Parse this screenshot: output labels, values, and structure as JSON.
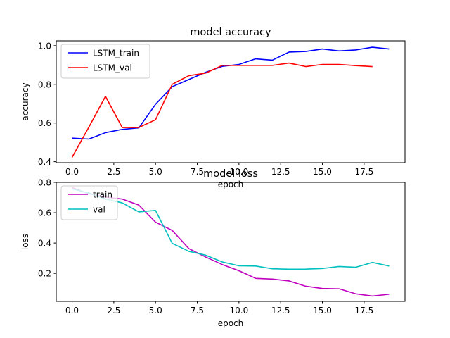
{
  "chart_data": [
    {
      "type": "line",
      "title": "model accuracy",
      "xlabel": "epoch",
      "ylabel": "accuracy",
      "xlim": [
        -0.95,
        19.95
      ],
      "ylim": [
        0.395,
        1.025
      ],
      "xticks": [
        0.0,
        2.5,
        5.0,
        7.5,
        10.0,
        12.5,
        15.0,
        17.5
      ],
      "xtick_labels": [
        "0.0",
        "2.5",
        "5.0",
        "7.5",
        "10.0",
        "12.5",
        "15.0",
        "17.5"
      ],
      "yticks": [
        0.4,
        0.6,
        0.8,
        1.0
      ],
      "ytick_labels": [
        "0.4",
        "0.6",
        "0.8",
        "1.0"
      ],
      "grid": false,
      "legend_position": "upper-left",
      "series": [
        {
          "name": "LSTM_train",
          "color": "#0000ff",
          "x": [
            0,
            1,
            2,
            3,
            4,
            5,
            6,
            7,
            8,
            9,
            10,
            11,
            12,
            13,
            14,
            15,
            16,
            17,
            18,
            19
          ],
          "values": [
            0.522,
            0.517,
            0.55,
            0.567,
            0.575,
            0.697,
            0.788,
            0.825,
            0.862,
            0.893,
            0.903,
            0.932,
            0.925,
            0.967,
            0.97,
            0.983,
            0.973,
            0.978,
            0.992,
            0.983
          ]
        },
        {
          "name": "LSTM_val",
          "color": "#ff0000",
          "x": [
            0,
            1,
            2,
            3,
            4,
            5,
            6,
            7,
            8,
            9,
            10,
            11,
            12,
            13,
            14,
            15,
            16,
            17,
            18
          ],
          "values": [
            0.423,
            0.578,
            0.738,
            0.577,
            0.577,
            0.617,
            0.8,
            0.845,
            0.858,
            0.898,
            0.898,
            0.898,
            0.898,
            0.91,
            0.892,
            0.903,
            0.903,
            0.897,
            0.892
          ]
        }
      ]
    },
    {
      "type": "line",
      "title": "model loss",
      "xlabel": "epoch",
      "ylabel": "loss",
      "xlim": [
        -0.95,
        19.95
      ],
      "ylim": [
        0.015,
        0.8
      ],
      "xticks": [
        0.0,
        2.5,
        5.0,
        7.5,
        10.0,
        12.5,
        15.0,
        17.5
      ],
      "xtick_labels": [
        "0.0",
        "2.5",
        "5.0",
        "7.5",
        "10.0",
        "12.5",
        "15.0",
        "17.5"
      ],
      "yticks": [
        0.2,
        0.4,
        0.6,
        0.8
      ],
      "ytick_labels": [
        "0.2",
        "0.4",
        "0.6",
        "0.8"
      ],
      "grid": false,
      "legend_position": "upper-left",
      "series": [
        {
          "name": "train",
          "color": "#bf00bf",
          "x": [
            0,
            1,
            2,
            3,
            4,
            5,
            6,
            7,
            8,
            9,
            10,
            11,
            12,
            13,
            14,
            15,
            16,
            17,
            18,
            19
          ],
          "values": [
            0.765,
            0.725,
            0.703,
            0.69,
            0.65,
            0.538,
            0.483,
            0.363,
            0.308,
            0.258,
            0.217,
            0.167,
            0.162,
            0.15,
            0.115,
            0.1,
            0.098,
            0.065,
            0.05,
            0.062
          ]
        },
        {
          "name": "val",
          "color": "#00bfbf",
          "x": [
            0,
            1,
            2,
            3,
            4,
            5,
            6,
            7,
            8,
            9,
            10,
            11,
            12,
            13,
            14,
            15,
            16,
            17,
            18,
            19
          ],
          "values": [
            0.757,
            0.73,
            0.69,
            0.665,
            0.605,
            0.615,
            0.398,
            0.345,
            0.32,
            0.275,
            0.25,
            0.248,
            0.23,
            0.227,
            0.228,
            0.232,
            0.245,
            0.24,
            0.272,
            0.248
          ]
        }
      ]
    }
  ]
}
